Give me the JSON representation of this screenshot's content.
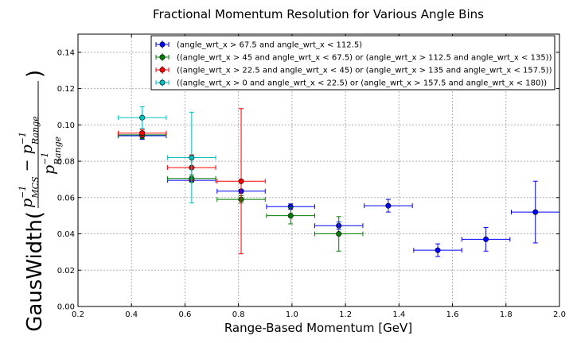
{
  "chart_data": {
    "type": "scatter",
    "title": "Fractional Momentum Resolution for Various Angle Bins",
    "xlabel": "Range-Based Momentum [GeV]",
    "ylabel": {
      "prefix": "GausWidth(",
      "numerator": "p",
      "numerator_exp1": "−1",
      "numerator_sub1": "MCS",
      "minus": " − p",
      "numerator_exp2": "−1",
      "numerator_sub2": "Range",
      "denominator": "p",
      "denominator_exp": "−1",
      "denominator_sub": "Range",
      "suffix": ")"
    },
    "xlim": [
      0.2,
      2.0
    ],
    "ylim": [
      0.0,
      0.15
    ],
    "xticks": [
      "0.2",
      "0.4",
      "0.6",
      "0.8",
      "1.0",
      "1.2",
      "1.4",
      "1.6",
      "1.8",
      "2.0"
    ],
    "yticks": [
      "0.00",
      "0.02",
      "0.04",
      "0.06",
      "0.08",
      "0.10",
      "0.12",
      "0.14"
    ],
    "grid": true,
    "legend_position": "top-right",
    "series": [
      {
        "name": "(angle_wrt_x > 67.5 and angle_wrt_x < 112.5)",
        "color": "#0000ff",
        "points": [
          {
            "x": 0.44,
            "y": 0.094,
            "xerr": 0.09,
            "yerr": 0.002
          },
          {
            "x": 0.625,
            "y": 0.0695,
            "xerr": 0.09,
            "yerr": 0.001
          },
          {
            "x": 0.81,
            "y": 0.0635,
            "xerr": 0.09,
            "yerr": 0.001
          },
          {
            "x": 0.995,
            "y": 0.055,
            "xerr": 0.09,
            "yerr": 0.0015
          },
          {
            "x": 1.175,
            "y": 0.0445,
            "xerr": 0.09,
            "yerr": 0.002
          },
          {
            "x": 1.36,
            "y": 0.0555,
            "xerr": 0.09,
            "yerr": 0.0035
          },
          {
            "x": 1.545,
            "y": 0.031,
            "xerr": 0.09,
            "yerr": 0.0035
          },
          {
            "x": 1.725,
            "y": 0.037,
            "xerr": 0.09,
            "yerr": 0.0065
          },
          {
            "x": 1.91,
            "y": 0.052,
            "xerr": 0.09,
            "yerr": 0.017
          }
        ]
      },
      {
        "name": "((angle_wrt_x > 45 and angle_wrt_x < 67.5) or (angle_wrt_x > 112.5 and angle_wrt_x < 135))",
        "color": "#007f00",
        "points": [
          {
            "x": 0.44,
            "y": 0.0945,
            "xerr": 0.09,
            "yerr": 0.002
          },
          {
            "x": 0.625,
            "y": 0.0705,
            "xerr": 0.09,
            "yerr": 0.002
          },
          {
            "x": 0.81,
            "y": 0.059,
            "xerr": 0.09,
            "yerr": 0.002
          },
          {
            "x": 0.995,
            "y": 0.05,
            "xerr": 0.09,
            "yerr": 0.0045
          },
          {
            "x": 1.175,
            "y": 0.04,
            "xerr": 0.09,
            "yerr": 0.0095
          }
        ]
      },
      {
        "name": "((angle_wrt_x > 22.5 and angle_wrt_x < 45) or (angle_wrt_x > 135 and angle_wrt_x < 157.5))",
        "color": "#ff0000",
        "points": [
          {
            "x": 0.44,
            "y": 0.0955,
            "xerr": 0.09,
            "yerr": 0.002
          },
          {
            "x": 0.625,
            "y": 0.0765,
            "xerr": 0.09,
            "yerr": 0.007
          },
          {
            "x": 0.81,
            "y": 0.069,
            "xerr": 0.09,
            "yerr": 0.04
          }
        ]
      },
      {
        "name": "((angle_wrt_x > 0 and angle_wrt_x < 22.5) or (angle_wrt_x > 157.5 and angle_wrt_x < 180))",
        "color": "#00bfbf",
        "points": [
          {
            "x": 0.44,
            "y": 0.104,
            "xerr": 0.09,
            "yerr": 0.006
          },
          {
            "x": 0.625,
            "y": 0.082,
            "xerr": 0.09,
            "yerr": 0.025
          }
        ]
      }
    ]
  }
}
